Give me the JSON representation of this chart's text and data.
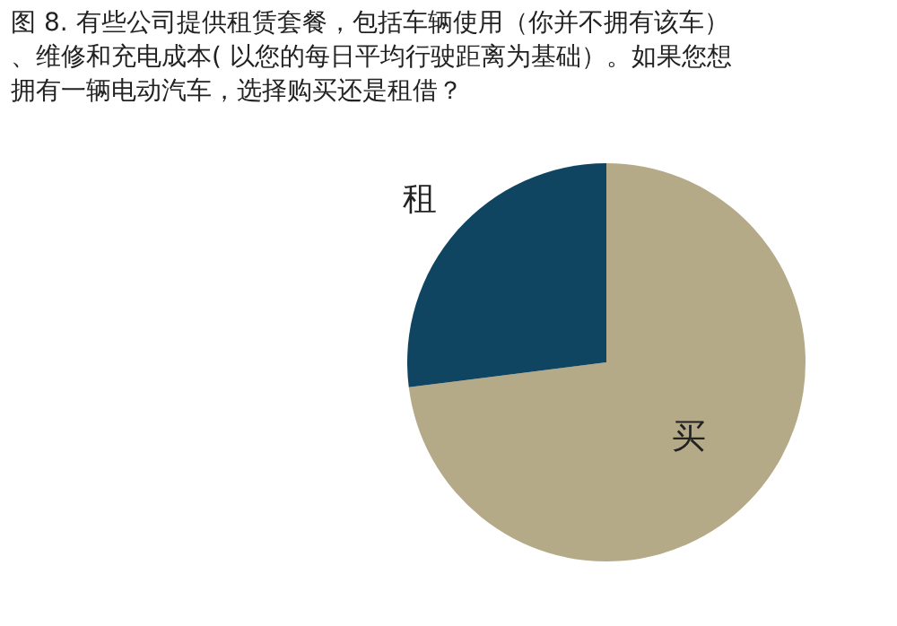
{
  "chart_data": {
    "type": "pie",
    "title": "图 8. 有些公司提供租赁套餐，包括车辆使用（你并不拥有该车）、维修和充电成本( 以您的每日平均行驶距离为基础）。如果您想拥有一辆电动汽车，选择购买还是租借？",
    "categories": [
      "买",
      "租"
    ],
    "values": [
      73,
      27
    ],
    "colors": [
      "#b5aa88",
      "#0f4560"
    ]
  }
}
